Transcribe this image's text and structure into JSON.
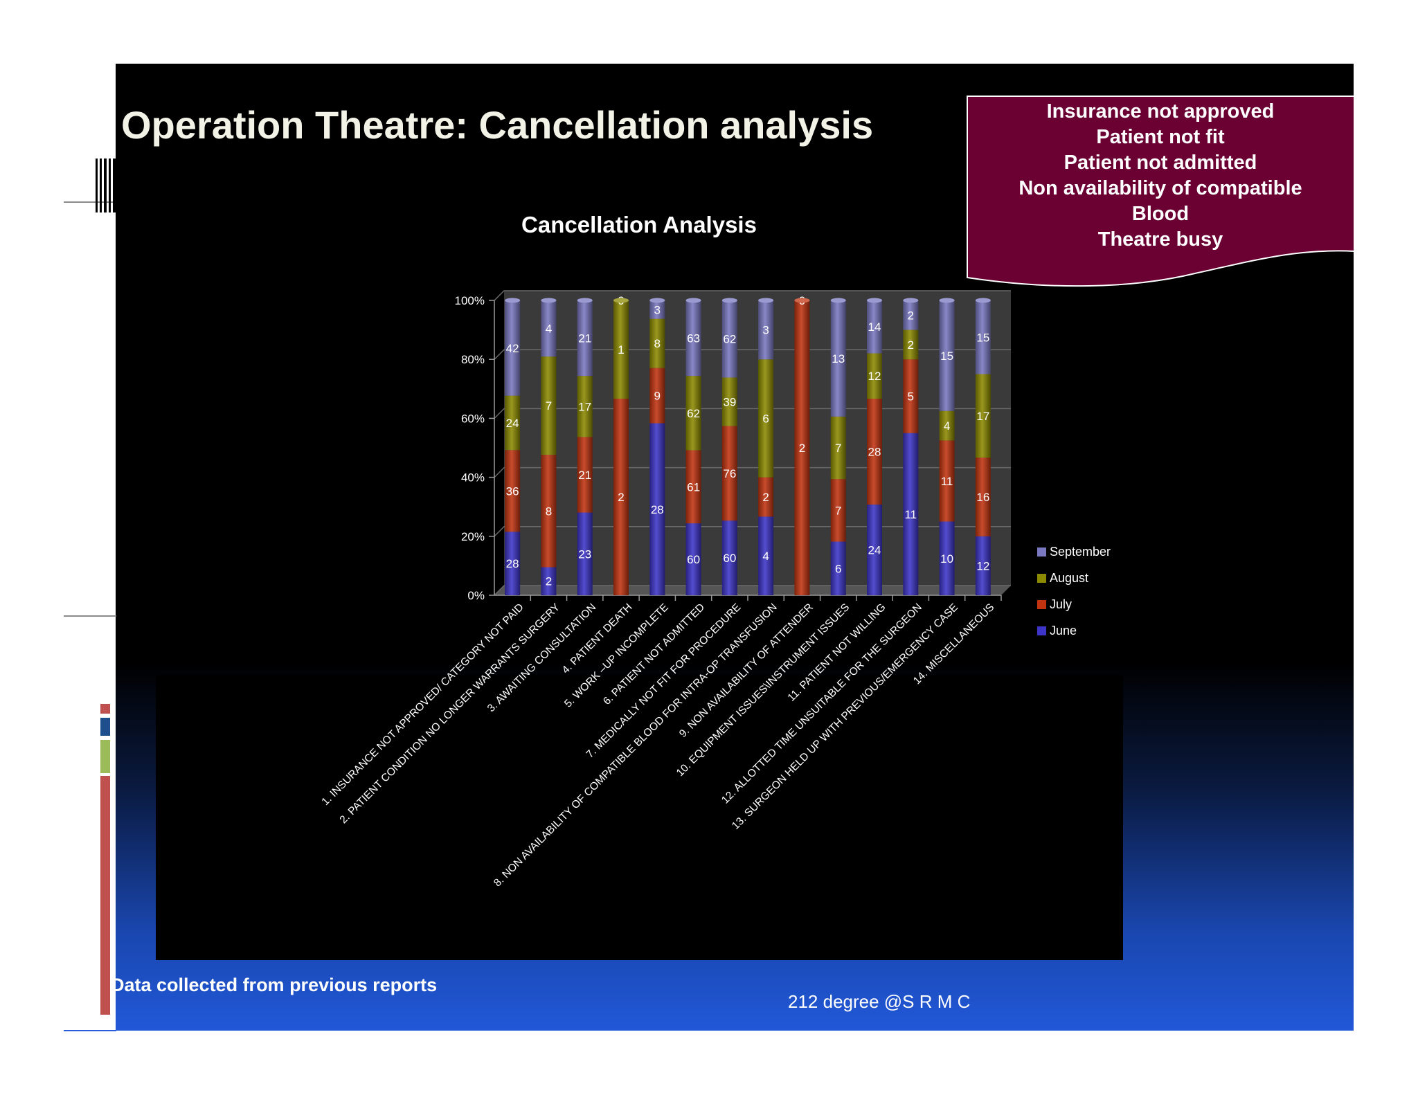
{
  "slide": {
    "title": "Operation Theatre: Cancellation analysis",
    "footer_note": "Data collected from previous reports",
    "footer_credit": "212 degree @S R M C"
  },
  "callout": {
    "lines": [
      "Insurance not approved",
      "Patient not fit",
      "Patient not admitted",
      "Non availability of compatible",
      "Blood",
      "Theatre busy"
    ],
    "color": "#6b0033"
  },
  "chart_data": {
    "type": "bar",
    "stacked": "percent",
    "title": "Cancellation Analysis",
    "xlabel": "",
    "ylabel": "",
    "ylim": [
      0,
      100
    ],
    "y_ticks": [
      "0%",
      "20%",
      "40%",
      "60%",
      "80%",
      "100%"
    ],
    "legend_position": "right",
    "categories": [
      "1. INSURANCE NOT APPROVED/ CATEGORY NOT PAID",
      "2. PATIENT CONDITION NO LONGER WARRANTS SURGERY",
      "3. AWAITING CONSULTATION",
      "4. PATIENT DEATH",
      "5. WORK –UP INCOMPLETE",
      "6. PATIENT NOT ADMITTED",
      "7. MEDICALLY NOT FIT FOR PROCEDURE",
      "8. NON AVAILABILITY OF COMPATIBLE BLOOD FOR INTRA-OP TRANSFUSION",
      "9. NON AVAILABILITY OF ATTENDER",
      "10. EQUIPMENT ISSUES\\INSTRUMENT ISSUES",
      "11. PATIENT NOT WILLING",
      "12. ALLOTTED TIME UNSUITABLE FOR THE SURGEON",
      "13. SURGEON HELD UP WITH PREVIOUS/EMERGENCY CASE",
      "14. MISCELLANEOUS"
    ],
    "series": [
      {
        "name": "June",
        "color": "#3d35c8",
        "values": [
          28,
          2,
          23,
          0,
          28,
          60,
          60,
          4,
          0,
          6,
          24,
          11,
          10,
          12
        ]
      },
      {
        "name": "July",
        "color": "#c23410",
        "values": [
          36,
          8,
          21,
          2,
          9,
          61,
          76,
          2,
          2,
          7,
          28,
          5,
          11,
          16
        ]
      },
      {
        "name": "August",
        "color": "#8c8a00",
        "values": [
          24,
          7,
          17,
          1,
          8,
          62,
          39,
          6,
          null,
          7,
          12,
          2,
          4,
          17
        ]
      },
      {
        "name": "September",
        "color": "#7a78c0",
        "values": [
          42,
          4,
          21,
          0,
          3,
          63,
          62,
          3,
          0,
          13,
          14,
          2,
          15,
          15
        ]
      }
    ],
    "legend_order": [
      "September",
      "August",
      "July",
      "June"
    ]
  }
}
